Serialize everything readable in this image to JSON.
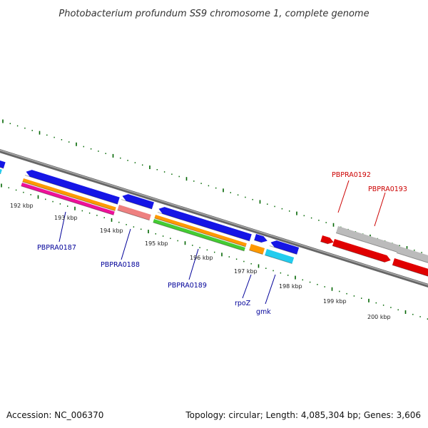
{
  "title": "Photobacterium profundum SS9 chromosome 1, complete genome",
  "footer": {
    "accession": "Accession: NC_006370",
    "summary": "Topology: circular; Length: 4,085,304 bp; Genes: 3,606"
  },
  "tick_labels": [
    "192 kbp",
    "193 kbp",
    "194 kbp",
    "195 kbp",
    "196 kbp",
    "197 kbp",
    "198 kbp",
    "199 kbp",
    "200 kbp"
  ],
  "gene_labels": [
    "PBPRA0187",
    "PBPRA0188",
    "PBPRA0189",
    "rpoZ",
    "gmk",
    "PBPRA0192",
    "PBPRA0193"
  ],
  "colors": {
    "backbone": "#888888",
    "forward_gene": "#1515e6",
    "highlight_gene": "#e00000",
    "pseudo_gene": "#bbbbbb",
    "cds_orange": "#ff9900",
    "cds_pink": "#ee1199",
    "cds_salmon": "#ee8080",
    "cds_green": "#44cc33",
    "cds_cyan": "#22ccee",
    "tick": "#006600",
    "label_blue": "#000099",
    "label_red": "#cc0000"
  }
}
